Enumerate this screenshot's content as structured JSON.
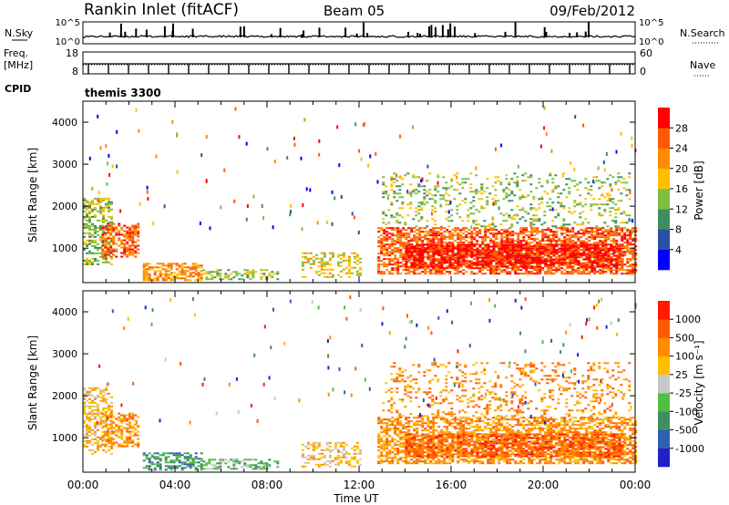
{
  "header": {
    "station": "Rankin Inlet (fitACF)",
    "beam": "Beam 05",
    "date": "09/Feb/2012"
  },
  "strip_labels": {
    "nsky": "N.Sky",
    "nsky_ticks": [
      "10^5",
      "10^0"
    ],
    "nsearch": "N.Search",
    "nsearch_ticks": [
      "10^5",
      "10^0"
    ],
    "freq_line1": "Freq.",
    "freq_line2": "[MHz]",
    "freq_ticks": [
      "18",
      "8"
    ],
    "nave": "Nave",
    "nave_ticks": [
      "60",
      "0"
    ],
    "cpid": "CPID",
    "cpid_value": "themis 3300"
  },
  "colors": {
    "power": [
      "#0000ff",
      "#2a4fa6",
      "#3f8f5e",
      "#7fbf3f",
      "#ffbf00",
      "#ff8c00",
      "#ff5a00",
      "#ff0000"
    ],
    "velocity": [
      "#2020c8",
      "#2f5fb0",
      "#3f8f5e",
      "#4fbf3f",
      "#c8c8c8",
      "#ffbf00",
      "#ff8c00",
      "#ff5a00",
      "#ff1a00"
    ]
  },
  "chart_data": [
    {
      "type": "heatmap",
      "panel": "power",
      "ylabel": "Slant Range [km]",
      "yticks": [
        "1000",
        "2000",
        "3000",
        "4000"
      ],
      "ylim": [
        180,
        4500
      ],
      "xlim": [
        0,
        24
      ],
      "colorbar_label": "Power [dB]",
      "colorbar_ticks": [
        "28",
        "24",
        "20",
        "16",
        "12",
        "8",
        "4"
      ],
      "colorbar_range": [
        0,
        32
      ],
      "bands": [
        {
          "t0": 0.0,
          "t1": 1.3,
          "r0": 600,
          "r1": 2200,
          "level": 3,
          "density": 0.55
        },
        {
          "t0": 0.8,
          "t1": 2.4,
          "r0": 800,
          "r1": 1600,
          "level": 6,
          "density": 0.6
        },
        {
          "t0": 2.6,
          "t1": 5.2,
          "r0": 250,
          "r1": 650,
          "level": 5,
          "density": 0.6
        },
        {
          "t0": 5.2,
          "t1": 8.5,
          "r0": 250,
          "r1": 500,
          "level": 3,
          "density": 0.45
        },
        {
          "t0": 9.5,
          "t1": 12.0,
          "r0": 300,
          "r1": 900,
          "level": 4,
          "density": 0.4
        },
        {
          "t0": 12.8,
          "t1": 24.0,
          "r0": 400,
          "r1": 1500,
          "level": 6,
          "density": 0.65
        },
        {
          "t0": 14.0,
          "t1": 23.5,
          "r0": 550,
          "r1": 1100,
          "level": 7,
          "density": 0.7
        },
        {
          "t0": 13.0,
          "t1": 23.8,
          "r0": 1500,
          "r1": 2800,
          "level": 3,
          "density": 0.2
        }
      ]
    },
    {
      "type": "heatmap",
      "panel": "velocity",
      "ylabel": "Slant Range [km]",
      "yticks": [
        "1000",
        "2000",
        "3000",
        "4000"
      ],
      "ylim": [
        180,
        4500
      ],
      "xlim": [
        0,
        24
      ],
      "xlabel": "Time UT",
      "xticks": [
        "00:00",
        "04:00",
        "08:00",
        "12:00",
        "16:00",
        "20:00",
        "00:00"
      ],
      "colorbar_label": "Velocity [m s⁻¹]",
      "colorbar_ticks": [
        "1000",
        "500",
        "100",
        "25",
        "-25",
        "-100",
        "-500",
        "-1000"
      ],
      "colorbar_range": [
        -1200,
        1200
      ],
      "bands": [
        {
          "t0": 0.0,
          "t1": 1.3,
          "r0": 600,
          "r1": 2200,
          "level": 5,
          "density": 0.5
        },
        {
          "t0": 0.8,
          "t1": 2.4,
          "r0": 800,
          "r1": 1600,
          "level": 6,
          "density": 0.55
        },
        {
          "t0": 2.6,
          "t1": 5.2,
          "r0": 250,
          "r1": 650,
          "level": 2,
          "density": 0.55
        },
        {
          "t0": 5.2,
          "t1": 8.5,
          "r0": 250,
          "r1": 500,
          "level": 3,
          "density": 0.45
        },
        {
          "t0": 9.5,
          "t1": 12.0,
          "r0": 300,
          "r1": 900,
          "level": 5,
          "density": 0.4
        },
        {
          "t0": 12.8,
          "t1": 24.0,
          "r0": 400,
          "r1": 1500,
          "level": 6,
          "density": 0.65
        },
        {
          "t0": 14.0,
          "t1": 23.5,
          "r0": 550,
          "r1": 1100,
          "level": 7,
          "density": 0.6
        },
        {
          "t0": 13.0,
          "t1": 23.8,
          "r0": 1500,
          "r1": 2800,
          "level": 6,
          "density": 0.2
        }
      ]
    }
  ]
}
